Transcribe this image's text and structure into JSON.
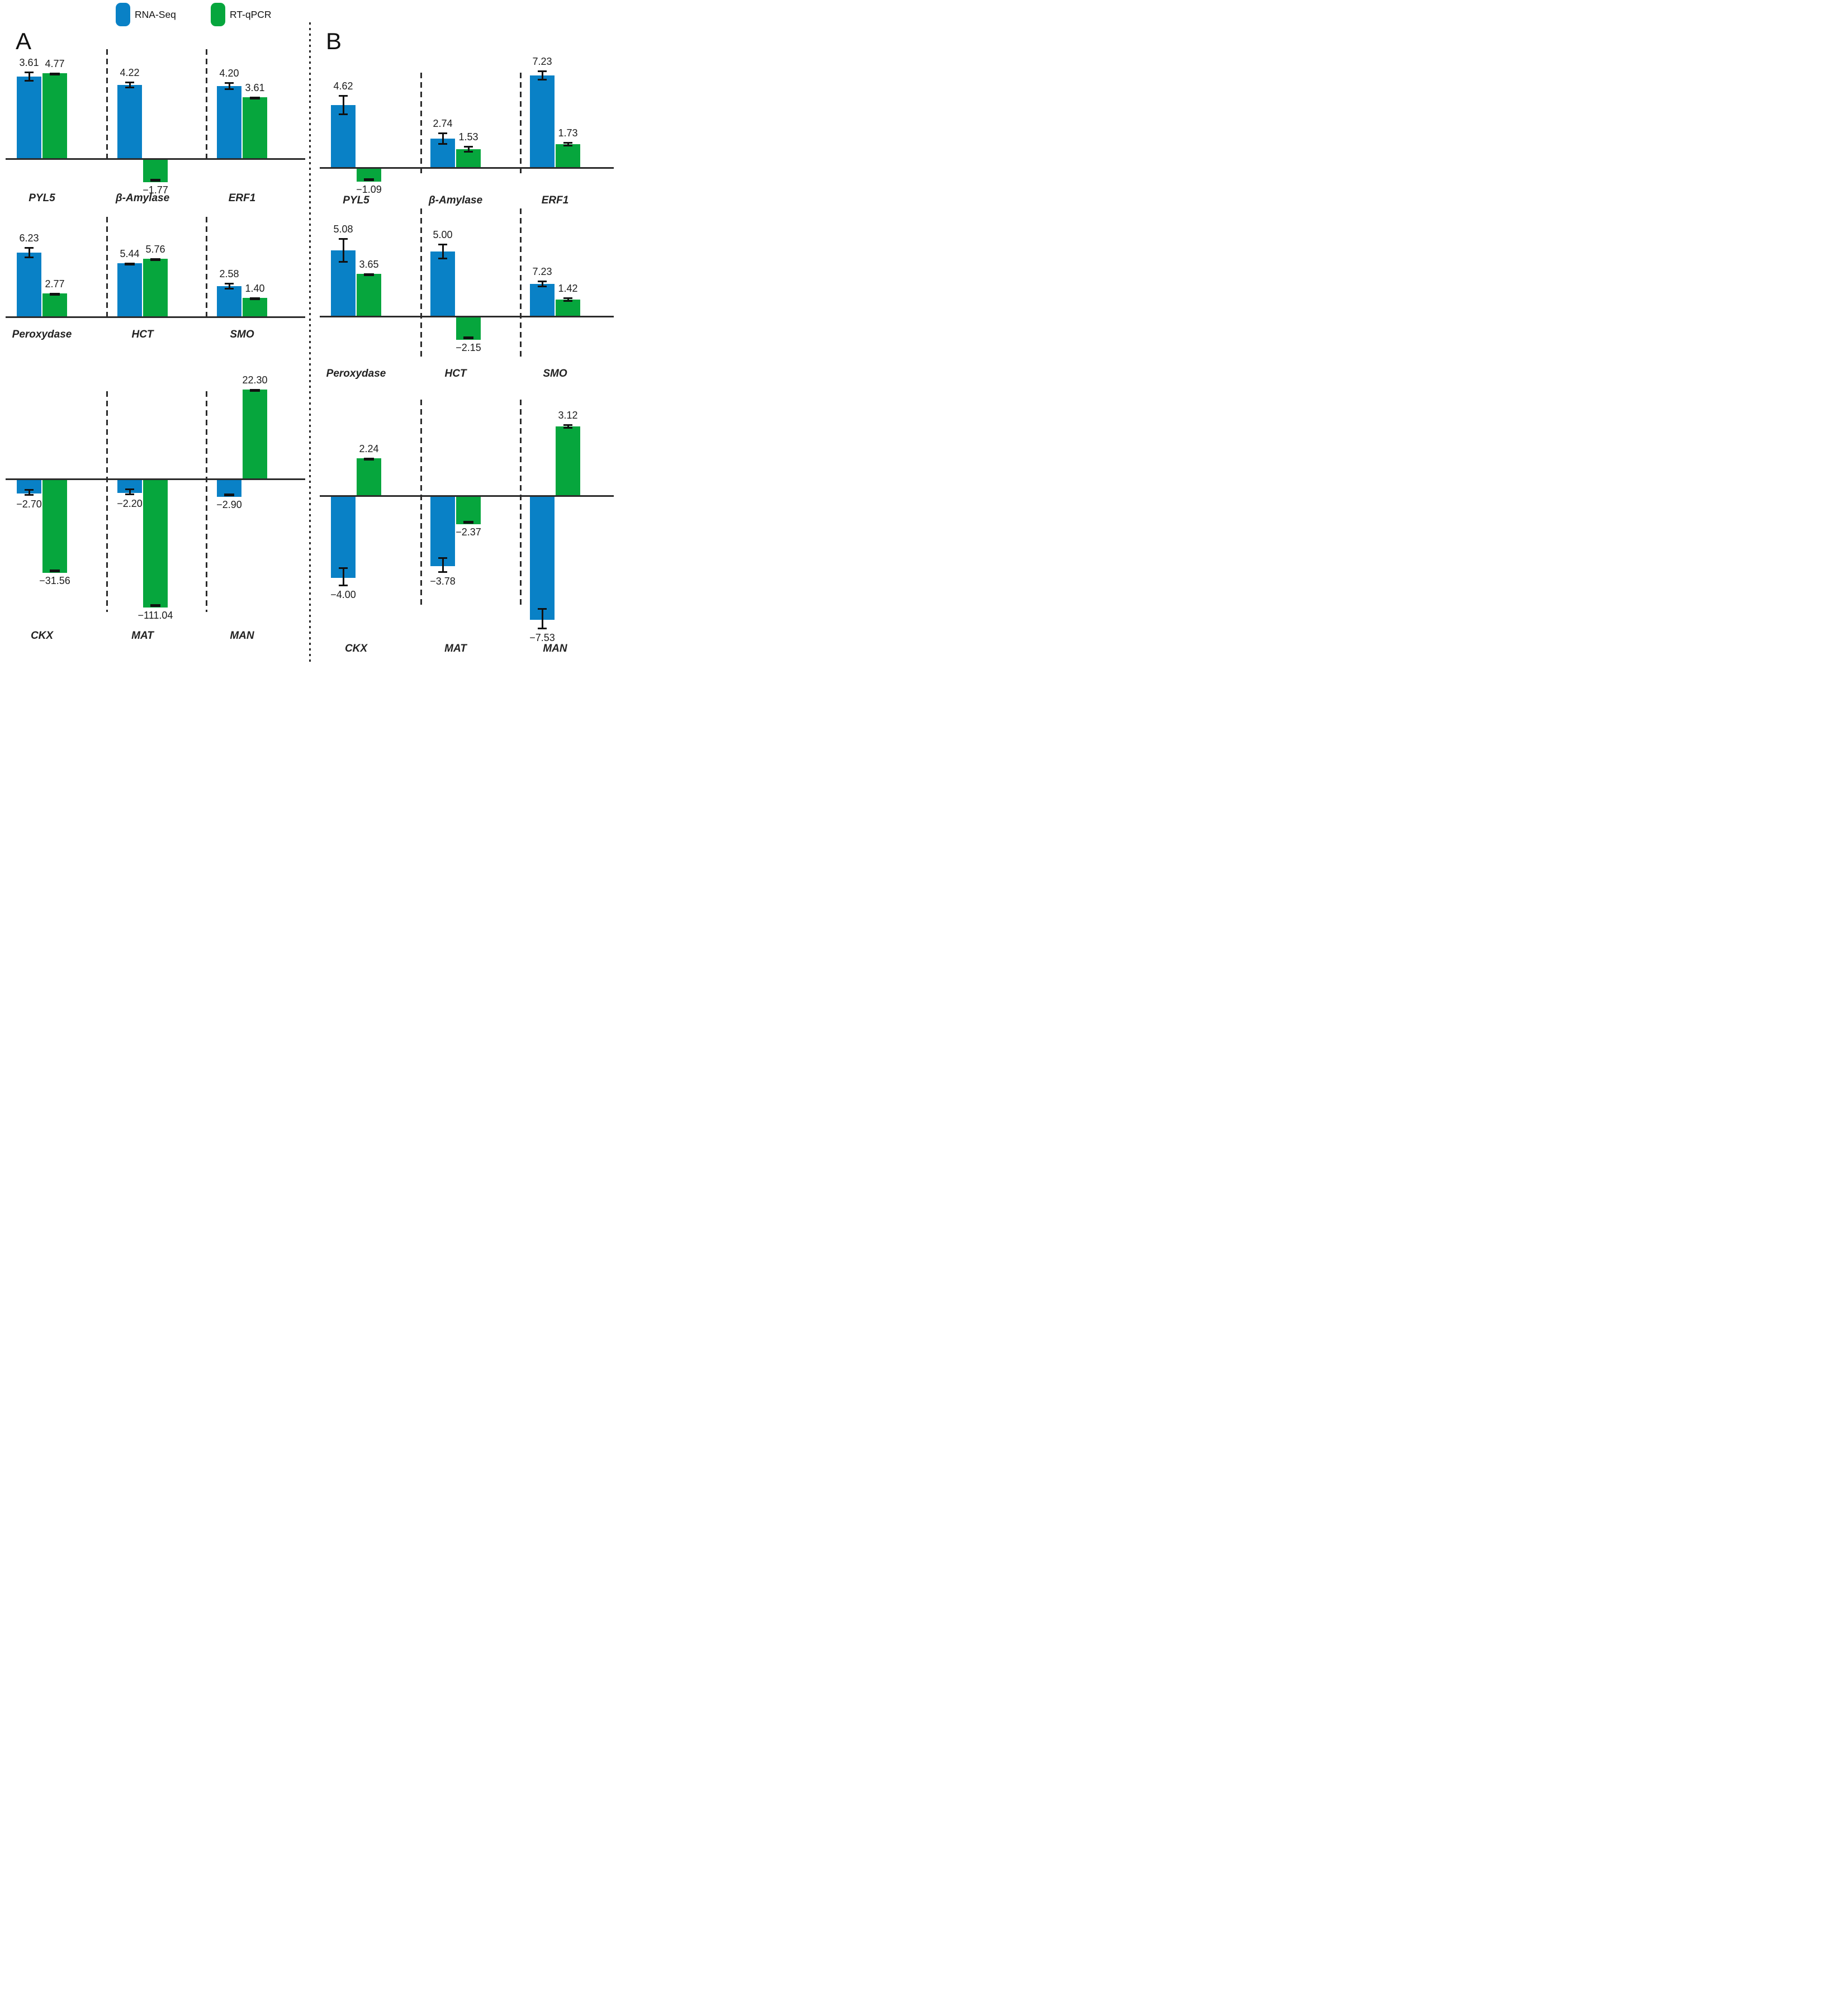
{
  "figure": {
    "panel_a_label": "A",
    "panel_b_label": "B",
    "legend": [
      {
        "label": "RNA-Seq",
        "color": "#0981c6"
      },
      {
        "label": "RT-qPCR",
        "color": "#06a63d"
      }
    ]
  },
  "chart_data": {
    "type": "bar",
    "grid": false,
    "y_axis_visible": false,
    "legend_position": "top-left",
    "value_labels_shown": true,
    "error_bars_shown": true,
    "series": [
      "RNA-Seq",
      "RT-qPCR"
    ],
    "series_colors": [
      "#0981c6",
      "#06a63d"
    ],
    "panels": [
      {
        "panel": "A",
        "rows": [
          {
            "groups": [
              {
                "gene": "PYL5",
                "rna_seq": 3.61,
                "rt_qpcr": 4.77,
                "labels": [
                  "3.61",
                  "4.77"
                ],
                "h": [
                  147,
                  153
                ],
                "e": [
                  8,
                  0
                ]
              },
              {
                "gene": "β-Amylase",
                "rna_seq": 4.22,
                "rt_qpcr": -1.77,
                "labels": [
                  "4.22",
                  "−1.77"
                ],
                "h": [
                  132,
                  -40
                ],
                "e": [
                  5,
                  0
                ]
              },
              {
                "gene": "ERF1",
                "rna_seq": 4.2,
                "rt_qpcr": 3.61,
                "labels": [
                  "4.20",
                  "3.61"
                ],
                "h": [
                  130,
                  110
                ],
                "e": [
                  6,
                  0
                ]
              }
            ]
          },
          {
            "groups": [
              {
                "gene": "Peroxydase",
                "rna_seq": 6.23,
                "rt_qpcr": 2.77,
                "labels": [
                  "6.23",
                  "2.77"
                ],
                "h": [
                  115,
                  42
                ],
                "e": [
                  9,
                  0
                ]
              },
              {
                "gene": "HCT",
                "rna_seq": 5.44,
                "rt_qpcr": 5.76,
                "labels": [
                  "5.44",
                  "5.76"
                ],
                "h": [
                  96,
                  104
                ],
                "e": [
                  0,
                  0
                ]
              },
              {
                "gene": "SMO",
                "rna_seq": 2.58,
                "rt_qpcr": 1.4,
                "labels": [
                  "2.58",
                  "1.40"
                ],
                "h": [
                  55,
                  34
                ],
                "e": [
                  5,
                  0
                ]
              }
            ]
          },
          {
            "groups": [
              {
                "gene": "CKX",
                "rna_seq": -2.7,
                "rt_qpcr": -31.56,
                "labels": [
                  "−2.70",
                  "−31.56"
                ],
                "h": [
                  -24,
                  -166
                ],
                "e": [
                  5,
                  0
                ]
              },
              {
                "gene": "MAT",
                "rna_seq": -2.2,
                "rt_qpcr": -111.04,
                "labels": [
                  "−2.20",
                  "−111.04"
                ],
                "h": [
                  -23,
                  -228
                ],
                "e": [
                  5,
                  0
                ]
              },
              {
                "gene": "MAN",
                "rna_seq": -2.9,
                "rt_qpcr": 22.3,
                "labels": [
                  "−2.90",
                  "22.30"
                ],
                "h": [
                  -30,
                  160
                ],
                "e": [
                  0,
                  0
                ]
              }
            ]
          }
        ]
      },
      {
        "panel": "B",
        "rows": [
          {
            "groups": [
              {
                "gene": "PYL5",
                "rna_seq": 4.62,
                "rt_qpcr": -1.09,
                "labels": [
                  "4.62",
                  "−1.09"
                ],
                "h": [
                  112,
                  -23
                ],
                "e": [
                  17,
                  0
                ]
              },
              {
                "gene": "β-Amylase",
                "rna_seq": 2.74,
                "rt_qpcr": 1.53,
                "labels": [
                  "2.74",
                  "1.53"
                ],
                "h": [
                  52,
                  33
                ],
                "e": [
                  10,
                  5
                ]
              },
              {
                "gene": "ERF1",
                "rna_seq": 7.23,
                "rt_qpcr": 1.73,
                "labels": [
                  "7.23",
                  "1.73"
                ],
                "h": [
                  165,
                  42
                ],
                "e": [
                  8,
                  3
                ]
              }
            ]
          },
          {
            "groups": [
              {
                "gene": "Peroxydase",
                "rna_seq": 5.08,
                "rt_qpcr": 3.65,
                "labels": [
                  "5.08",
                  "3.65"
                ],
                "h": [
                  118,
                  76
                ],
                "e": [
                  21,
                  0
                ]
              },
              {
                "gene": "HCT",
                "rna_seq": 5.0,
                "rt_qpcr": -2.15,
                "labels": [
                  "5.00",
                  "−2.15"
                ],
                "h": [
                  116,
                  -40
                ],
                "e": [
                  13,
                  0
                ]
              },
              {
                "gene": "SMO",
                "rna_seq": 7.23,
                "rt_qpcr": 1.42,
                "labels": [
                  "7.23",
                  "1.42"
                ],
                "h": [
                  58,
                  30
                ],
                "e": [
                  5,
                  3
                ]
              }
            ]
          },
          {
            "groups": [
              {
                "gene": "CKX",
                "rna_seq": -4.0,
                "rt_qpcr": 2.24,
                "labels": [
                  "−4.00",
                  "2.24"
                ],
                "h": [
                  -145,
                  67
                ],
                "e": [
                  16,
                  0
                ]
              },
              {
                "gene": "MAT",
                "rna_seq": -3.78,
                "rt_qpcr": -2.37,
                "labels": [
                  "−3.78",
                  "−2.37"
                ],
                "h": [
                  -124,
                  -49
                ],
                "e": [
                  13,
                  0
                ]
              },
              {
                "gene": "MAN",
                "rna_seq": -7.53,
                "rt_qpcr": 3.12,
                "labels": [
                  "−7.53",
                  "3.12"
                ],
                "h": [
                  -220,
                  124
                ],
                "e": [
                  18,
                  3
                ]
              }
            ]
          }
        ]
      }
    ]
  }
}
